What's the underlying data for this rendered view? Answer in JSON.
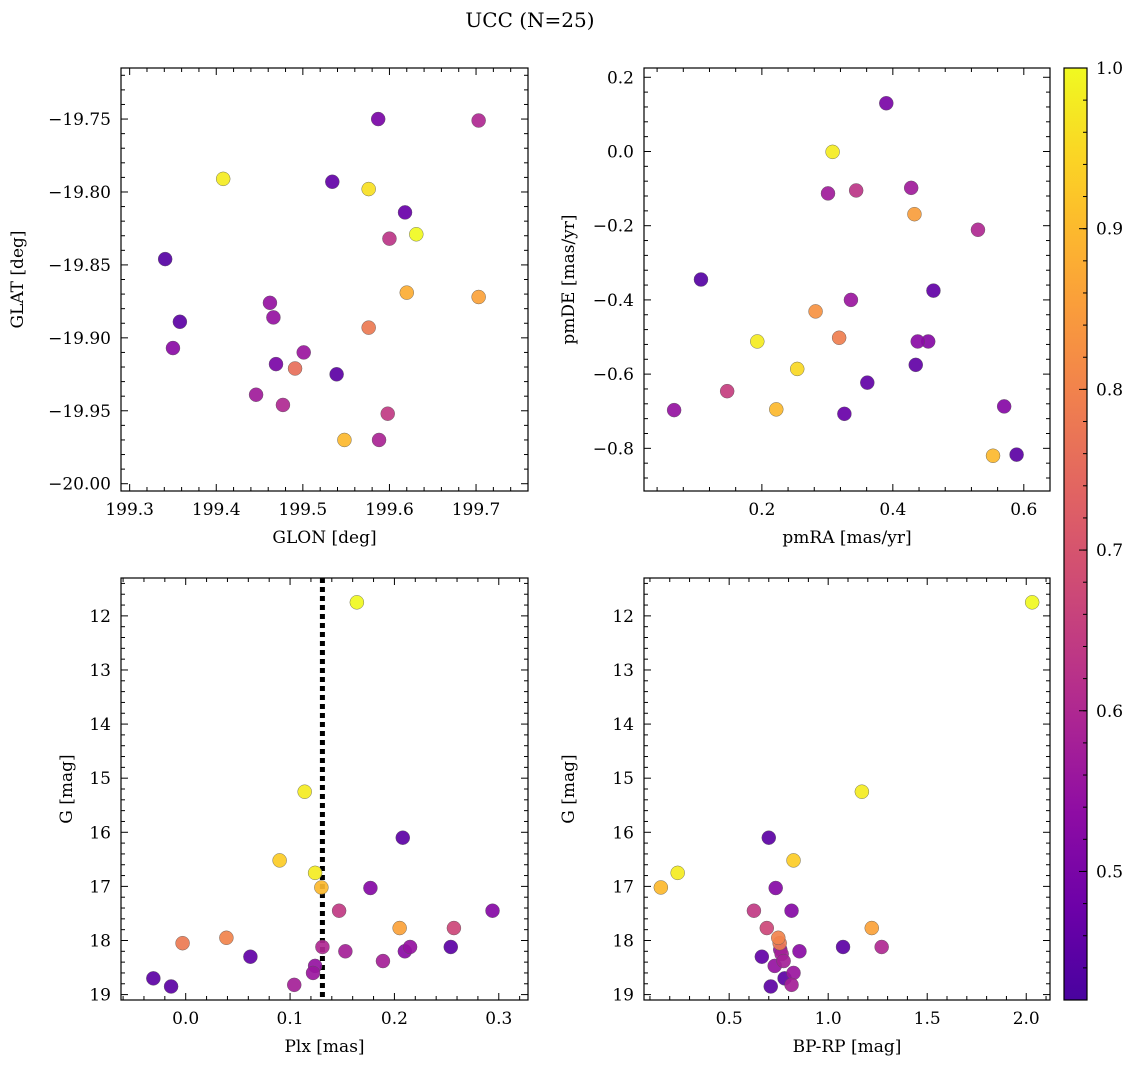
{
  "title": "UCC (N=25)",
  "colormap": "plasma",
  "colorbar": {
    "min": 0.42,
    "max": 1.0,
    "ticks": [
      "0.5",
      "0.6",
      "0.7",
      "0.8",
      "0.9",
      "1.0"
    ]
  },
  "chart_data": [
    {
      "type": "scatter",
      "xlabel": "GLON [deg]",
      "ylabel": "GLAT [deg]",
      "xlim": [
        199.29,
        199.76
      ],
      "ylim": [
        -20.005,
        -19.715
      ],
      "xticks": [
        "199.3",
        "199.4",
        "199.5",
        "199.6",
        "199.7"
      ],
      "yticks": [
        "−19.75",
        "−19.80",
        "−19.85",
        "−19.90",
        "−19.95",
        "−20.00"
      ],
      "points": [
        {
          "x": 199.587,
          "y": -19.75,
          "c": 0.5
        },
        {
          "x": 199.703,
          "y": -19.751,
          "c": 0.6
        },
        {
          "x": 199.408,
          "y": -19.791,
          "c": 0.98
        },
        {
          "x": 199.534,
          "y": -19.793,
          "c": 0.46
        },
        {
          "x": 199.576,
          "y": -19.798,
          "c": 0.96
        },
        {
          "x": 199.618,
          "y": -19.814,
          "c": 0.47
        },
        {
          "x": 199.631,
          "y": -19.829,
          "c": 1.0
        },
        {
          "x": 199.6,
          "y": -19.832,
          "c": 0.63
        },
        {
          "x": 199.341,
          "y": -19.846,
          "c": 0.44
        },
        {
          "x": 199.62,
          "y": -19.869,
          "c": 0.88
        },
        {
          "x": 199.703,
          "y": -19.872,
          "c": 0.86
        },
        {
          "x": 199.462,
          "y": -19.876,
          "c": 0.55
        },
        {
          "x": 199.466,
          "y": -19.886,
          "c": 0.55
        },
        {
          "x": 199.358,
          "y": -19.889,
          "c": 0.45
        },
        {
          "x": 199.576,
          "y": -19.893,
          "c": 0.78
        },
        {
          "x": 199.35,
          "y": -19.907,
          "c": 0.53
        },
        {
          "x": 199.501,
          "y": -19.91,
          "c": 0.56
        },
        {
          "x": 199.469,
          "y": -19.918,
          "c": 0.5
        },
        {
          "x": 199.491,
          "y": -19.921,
          "c": 0.76
        },
        {
          "x": 199.539,
          "y": -19.925,
          "c": 0.45
        },
        {
          "x": 199.446,
          "y": -19.939,
          "c": 0.57
        },
        {
          "x": 199.477,
          "y": -19.946,
          "c": 0.6
        },
        {
          "x": 199.598,
          "y": -19.952,
          "c": 0.64
        },
        {
          "x": 199.548,
          "y": -19.97,
          "c": 0.9
        },
        {
          "x": 199.588,
          "y": -19.97,
          "c": 0.59
        }
      ]
    },
    {
      "type": "scatter",
      "xlabel": "pmRA [mas/yr]",
      "ylabel": "pmDE [mas/yr]",
      "xlim": [
        0.02,
        0.64
      ],
      "ylim": [
        -0.915,
        0.225
      ],
      "xticks": [
        "0.2",
        "0.4",
        "0.6"
      ],
      "yticks": [
        "0.2",
        "0.0",
        "−0.2",
        "−0.4",
        "−0.6",
        "−0.8"
      ],
      "points": [
        {
          "x": 0.39,
          "y": 0.13,
          "c": 0.5
        },
        {
          "x": 0.308,
          "y": -0.001,
          "c": 0.98
        },
        {
          "x": 0.301,
          "y": -0.113,
          "c": 0.57
        },
        {
          "x": 0.344,
          "y": -0.105,
          "c": 0.63
        },
        {
          "x": 0.428,
          "y": -0.098,
          "c": 0.57
        },
        {
          "x": 0.433,
          "y": -0.169,
          "c": 0.85
        },
        {
          "x": 0.53,
          "y": -0.211,
          "c": 0.6
        },
        {
          "x": 0.107,
          "y": -0.345,
          "c": 0.44
        },
        {
          "x": 0.462,
          "y": -0.375,
          "c": 0.46
        },
        {
          "x": 0.336,
          "y": -0.4,
          "c": 0.56
        },
        {
          "x": 0.282,
          "y": -0.431,
          "c": 0.83
        },
        {
          "x": 0.318,
          "y": -0.502,
          "c": 0.79
        },
        {
          "x": 0.193,
          "y": -0.512,
          "c": 0.98
        },
        {
          "x": 0.438,
          "y": -0.512,
          "c": 0.53
        },
        {
          "x": 0.454,
          "y": -0.512,
          "c": 0.52
        },
        {
          "x": 0.435,
          "y": -0.575,
          "c": 0.46
        },
        {
          "x": 0.254,
          "y": -0.586,
          "c": 0.95
        },
        {
          "x": 0.361,
          "y": -0.623,
          "c": 0.46
        },
        {
          "x": 0.147,
          "y": -0.646,
          "c": 0.65
        },
        {
          "x": 0.222,
          "y": -0.695,
          "c": 0.9
        },
        {
          "x": 0.066,
          "y": -0.697,
          "c": 0.55
        },
        {
          "x": 0.326,
          "y": -0.707,
          "c": 0.47
        },
        {
          "x": 0.57,
          "y": -0.687,
          "c": 0.52
        },
        {
          "x": 0.553,
          "y": -0.82,
          "c": 0.9
        },
        {
          "x": 0.589,
          "y": -0.817,
          "c": 0.45
        }
      ]
    },
    {
      "type": "scatter",
      "xlabel": "Plx [mas]",
      "ylabel": "G [mag]",
      "xlim": [
        -0.062,
        0.328
      ],
      "ylim": [
        19.1,
        11.3
      ],
      "xticks": [
        "0.0",
        "0.1",
        "0.2",
        "0.3"
      ],
      "yticks": [
        "12",
        "13",
        "14",
        "15",
        "16",
        "17",
        "18",
        "19"
      ],
      "reference_line": {
        "x": 0.131,
        "style": "dotted"
      },
      "points": [
        {
          "x": 0.164,
          "y": 11.75,
          "c": 1.0
        },
        {
          "x": 0.114,
          "y": 15.25,
          "c": 0.98
        },
        {
          "x": 0.208,
          "y": 16.1,
          "c": 0.45
        },
        {
          "x": 0.09,
          "y": 16.52,
          "c": 0.93
        },
        {
          "x": 0.124,
          "y": 16.75,
          "c": 0.98
        },
        {
          "x": 0.13,
          "y": 17.02,
          "c": 0.9
        },
        {
          "x": 0.177,
          "y": 17.03,
          "c": 0.52
        },
        {
          "x": 0.294,
          "y": 17.45,
          "c": 0.52
        },
        {
          "x": 0.147,
          "y": 17.45,
          "c": 0.64
        },
        {
          "x": 0.205,
          "y": 17.77,
          "c": 0.86
        },
        {
          "x": 0.257,
          "y": 17.77,
          "c": 0.67
        },
        {
          "x": 0.039,
          "y": 17.95,
          "c": 0.8
        },
        {
          "x": -0.003,
          "y": 18.05,
          "c": 0.78
        },
        {
          "x": 0.131,
          "y": 18.12,
          "c": 0.6
        },
        {
          "x": 0.254,
          "y": 18.12,
          "c": 0.45
        },
        {
          "x": 0.215,
          "y": 18.12,
          "c": 0.55
        },
        {
          "x": 0.21,
          "y": 18.2,
          "c": 0.53
        },
        {
          "x": 0.153,
          "y": 18.2,
          "c": 0.58
        },
        {
          "x": 0.062,
          "y": 18.3,
          "c": 0.46
        },
        {
          "x": 0.189,
          "y": 18.38,
          "c": 0.58
        },
        {
          "x": 0.124,
          "y": 18.47,
          "c": 0.55
        },
        {
          "x": 0.122,
          "y": 18.6,
          "c": 0.56
        },
        {
          "x": -0.031,
          "y": 18.7,
          "c": 0.45
        },
        {
          "x": -0.014,
          "y": 18.85,
          "c": 0.45
        },
        {
          "x": 0.104,
          "y": 18.82,
          "c": 0.58
        }
      ]
    },
    {
      "type": "scatter",
      "xlabel": "BP-RP [mag]",
      "ylabel": "G [mag]",
      "xlim": [
        0.07,
        2.12
      ],
      "ylim": [
        19.1,
        11.3
      ],
      "xticks": [
        "0.5",
        "1.0",
        "1.5",
        "2.0"
      ],
      "yticks": [
        "12",
        "13",
        "14",
        "15",
        "16",
        "17",
        "18",
        "19"
      ],
      "points": [
        {
          "x": 2.03,
          "y": 11.75,
          "c": 1.0
        },
        {
          "x": 1.17,
          "y": 15.25,
          "c": 0.98
        },
        {
          "x": 0.7,
          "y": 16.1,
          "c": 0.45
        },
        {
          "x": 0.825,
          "y": 16.52,
          "c": 0.93
        },
        {
          "x": 0.24,
          "y": 16.75,
          "c": 0.98
        },
        {
          "x": 0.155,
          "y": 17.02,
          "c": 0.9
        },
        {
          "x": 0.735,
          "y": 17.03,
          "c": 0.52
        },
        {
          "x": 0.815,
          "y": 17.45,
          "c": 0.52
        },
        {
          "x": 0.625,
          "y": 17.45,
          "c": 0.64
        },
        {
          "x": 1.22,
          "y": 17.77,
          "c": 0.86
        },
        {
          "x": 0.69,
          "y": 17.77,
          "c": 0.67
        },
        {
          "x": 0.748,
          "y": 17.95,
          "c": 0.8
        },
        {
          "x": 0.755,
          "y": 18.05,
          "c": 0.78
        },
        {
          "x": 1.075,
          "y": 18.12,
          "c": 0.45
        },
        {
          "x": 1.27,
          "y": 18.12,
          "c": 0.6
        },
        {
          "x": 0.758,
          "y": 18.17,
          "c": 0.55
        },
        {
          "x": 0.855,
          "y": 18.2,
          "c": 0.53
        },
        {
          "x": 0.765,
          "y": 18.25,
          "c": 0.58
        },
        {
          "x": 0.665,
          "y": 18.3,
          "c": 0.46
        },
        {
          "x": 0.775,
          "y": 18.38,
          "c": 0.58
        },
        {
          "x": 0.73,
          "y": 18.47,
          "c": 0.55
        },
        {
          "x": 0.825,
          "y": 18.6,
          "c": 0.56
        },
        {
          "x": 0.78,
          "y": 18.7,
          "c": 0.45
        },
        {
          "x": 0.71,
          "y": 18.85,
          "c": 0.45
        },
        {
          "x": 0.815,
          "y": 18.82,
          "c": 0.58
        }
      ]
    }
  ]
}
